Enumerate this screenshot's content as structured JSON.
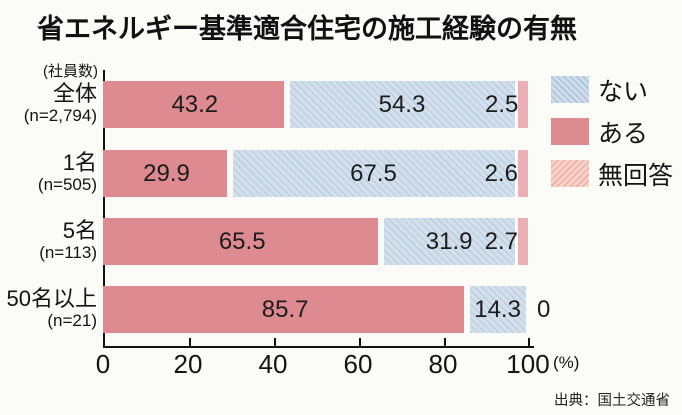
{
  "title": "省エネルギー基準適合住宅の施工経験の有無",
  "unit_label": "(社員数)",
  "axis": {
    "percent_label": "(%)"
  },
  "legend": [
    {
      "id": "nai",
      "label": "ない"
    },
    {
      "id": "aru",
      "label": "ある"
    },
    {
      "id": "mukaito",
      "label": "無回答"
    }
  ],
  "source": "出典：国土交通省",
  "colors": {
    "aru": "#dd8b91",
    "nai": "#d3e0ec",
    "mukaito": "#edafb6",
    "text": "#1a1a1a"
  },
  "chart_data": {
    "type": "bar",
    "orientation": "horizontal-stacked",
    "title": "省エネルギー基準適合住宅の施工経験の有無",
    "categories": [
      "全体",
      "1名",
      "5名",
      "50名以上"
    ],
    "category_sublabels": [
      "(n=2,794)",
      "(n=505)",
      "(n=113)",
      "(n=21)"
    ],
    "series": [
      {
        "name": "ある",
        "values": [
          43.2,
          29.9,
          65.5,
          85.7
        ]
      },
      {
        "name": "ない",
        "values": [
          54.3,
          67.5,
          31.9,
          14.3
        ]
      },
      {
        "name": "無回答",
        "values": [
          2.5,
          2.6,
          2.7,
          0
        ]
      }
    ],
    "xlim": [
      0,
      100
    ],
    "xticks": [
      0,
      20,
      40,
      60,
      80,
      100
    ],
    "xlabel": "(%)",
    "grid": false,
    "legend_position": "right",
    "value_labels": "inside"
  }
}
